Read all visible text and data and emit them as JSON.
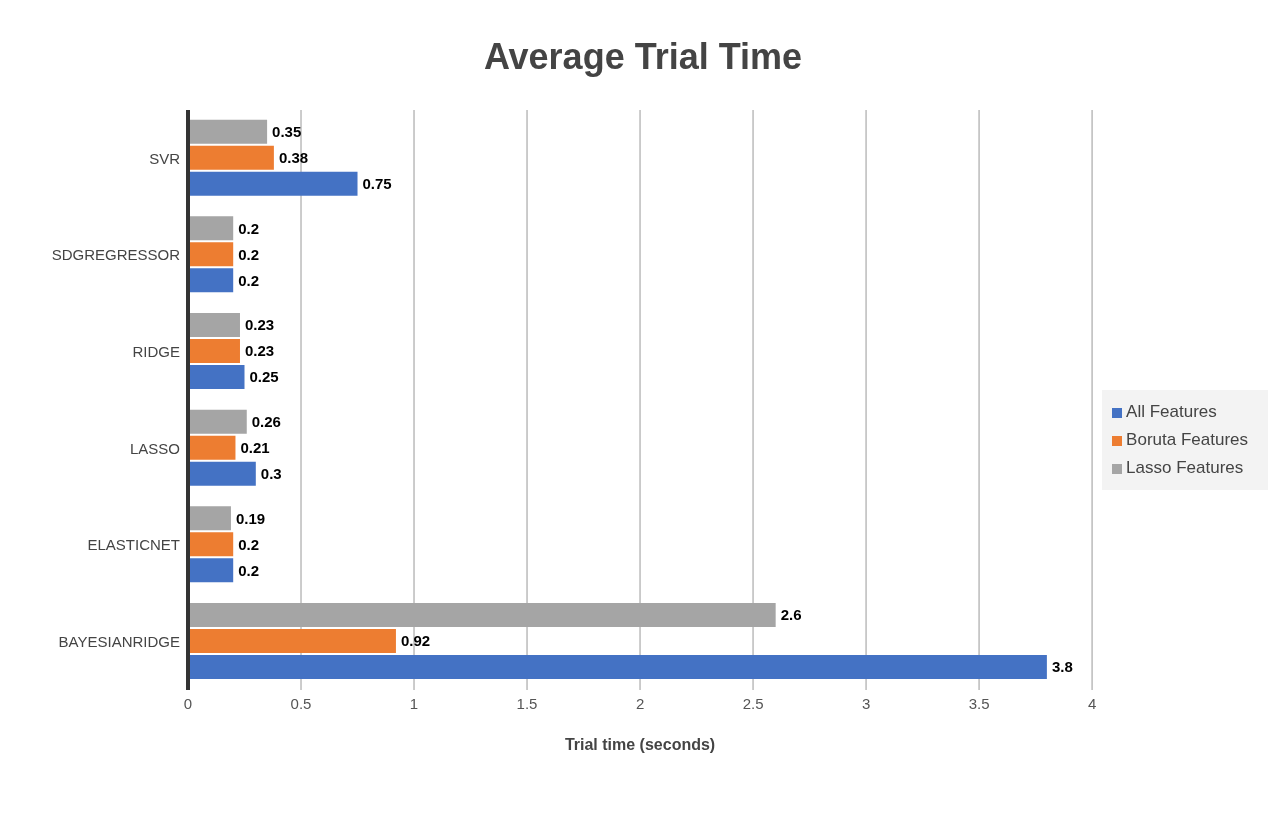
{
  "chart_data": {
    "type": "bar",
    "orientation": "horizontal",
    "title": "Average Trial Time",
    "xlabel": "Trial time (seconds)",
    "categories": [
      "SVR",
      "SDGREGRESSOR",
      "RIDGE",
      "LASSO",
      "ELASTICNET",
      "BAYESIANRIDGE"
    ],
    "series": [
      {
        "name": "Lasso Features",
        "color": "#a5a5a5",
        "values": [
          0.35,
          0.2,
          0.23,
          0.26,
          0.19,
          2.6
        ]
      },
      {
        "name": "Boruta Features",
        "color": "#ed7d31",
        "values": [
          0.38,
          0.2,
          0.23,
          0.21,
          0.2,
          0.92
        ]
      },
      {
        "name": "All Features",
        "color": "#4472c4",
        "values": [
          0.75,
          0.2,
          0.25,
          0.3,
          0.2,
          3.8
        ]
      }
    ],
    "xlim": [
      0,
      4
    ],
    "xticks": [
      0,
      0.5,
      1,
      1.5,
      2,
      2.5,
      3,
      3.5,
      4
    ],
    "grid": "x",
    "legend": "right",
    "data_labels": true
  }
}
